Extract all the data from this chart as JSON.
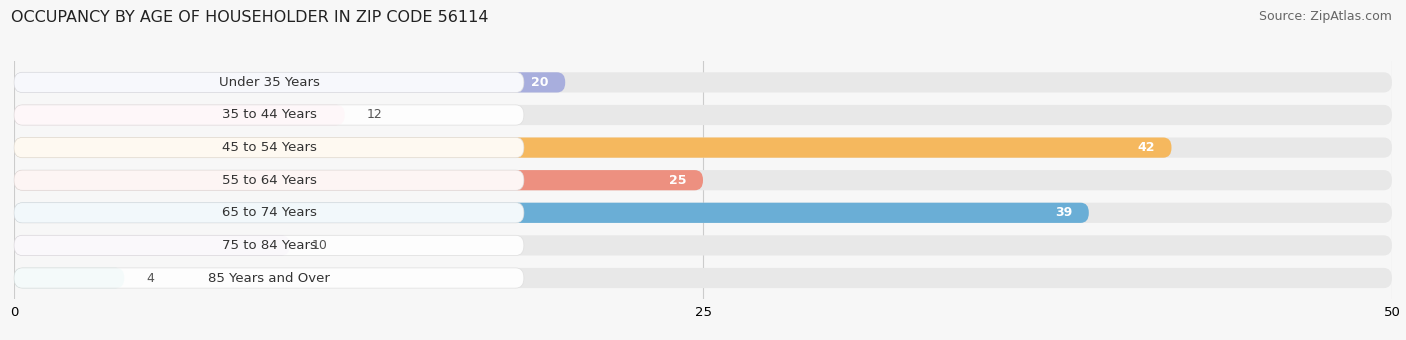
{
  "title": "OCCUPANCY BY AGE OF HOUSEHOLDER IN ZIP CODE 56114",
  "source": "Source: ZipAtlas.com",
  "categories": [
    "Under 35 Years",
    "35 to 44 Years",
    "45 to 54 Years",
    "55 to 64 Years",
    "65 to 74 Years",
    "75 to 84 Years",
    "85 Years and Over"
  ],
  "values": [
    20,
    12,
    42,
    25,
    39,
    10,
    4
  ],
  "bar_colors": [
    "#a8aedd",
    "#f4a8bc",
    "#f5b85e",
    "#ed9080",
    "#6aaed6",
    "#c8aad8",
    "#7ececa"
  ],
  "bar_bg_color": "#e8e8e8",
  "xlim_min": 0,
  "xlim_max": 50,
  "xticks": [
    0,
    25,
    50
  ],
  "title_fontsize": 11.5,
  "source_fontsize": 9,
  "label_fontsize": 9.5,
  "value_fontsize": 9,
  "background_color": "#f7f7f7",
  "bar_height": 0.62,
  "label_color": "#333333",
  "value_color_inside": "#ffffff",
  "value_color_outside": "#555555",
  "inside_threshold": 18,
  "label_pill_color": "#ffffff",
  "label_pill_alpha": 0.92
}
